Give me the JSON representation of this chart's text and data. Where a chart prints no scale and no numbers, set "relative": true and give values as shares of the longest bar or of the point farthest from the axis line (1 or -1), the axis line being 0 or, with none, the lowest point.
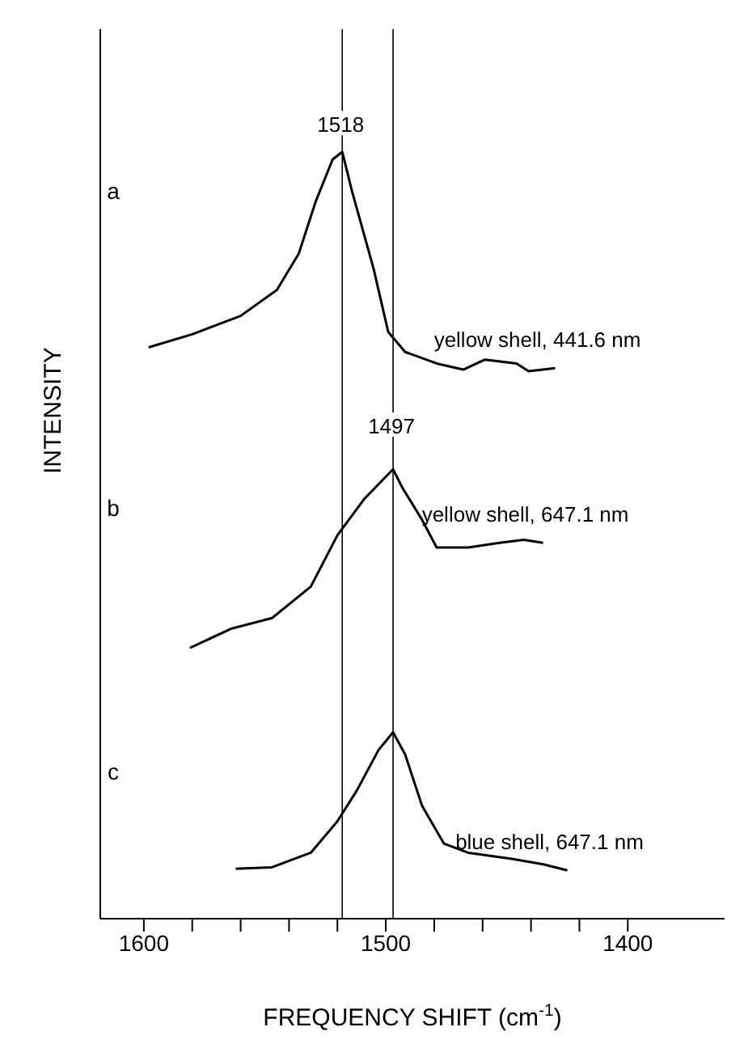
{
  "chart_data": {
    "type": "line",
    "relative": true,
    "xlabel": "FREQUENCY SHIFT (cm$^{-1}$)",
    "ylabel": "INTENSITY",
    "xlim": [
      1618,
      1360
    ],
    "xticks": [
      1600,
      {
        "value": 1580,
        "label": null
      },
      {
        "value": 1560,
        "label": null
      },
      {
        "value": 1540,
        "label": null
      },
      {
        "value": 1520,
        "label": null
      },
      1500,
      {
        "value": 1480,
        "label": null
      },
      {
        "value": 1460,
        "label": null
      },
      {
        "value": 1440,
        "label": null
      },
      {
        "value": 1420,
        "label": null
      },
      1400
    ],
    "series": [
      {
        "name": "yellow shell, 441.6 nm",
        "color": "#000000",
        "x": [
          1598,
          1580,
          1560,
          1545,
          1536,
          1529,
          1522,
          1518,
          1514,
          1505,
          1499,
          1492,
          1479,
          1468,
          1459,
          1446,
          1441,
          1430
        ],
        "values": [
          0.745,
          0.762,
          0.786,
          0.82,
          0.867,
          0.935,
          0.99,
          1.0,
          0.949,
          0.847,
          0.765,
          0.739,
          0.724,
          0.716,
          0.729,
          0.724,
          0.714,
          0.718
        ]
      },
      {
        "name": "yellow shell, 647.1 nm",
        "color": "#000000",
        "x": [
          1581,
          1564,
          1547,
          1531,
          1520,
          1509,
          1497,
          1493,
          1485,
          1479,
          1466,
          1453,
          1443,
          1435
        ],
        "values": [
          0.353,
          0.378,
          0.392,
          0.433,
          0.5,
          0.547,
          0.586,
          0.561,
          0.52,
          0.484,
          0.484,
          0.49,
          0.494,
          0.49
        ]
      },
      {
        "name": "blue shell, 647.1 nm",
        "color": "#000000",
        "x": [
          1562,
          1547,
          1531,
          1520,
          1512,
          1503,
          1497,
          1492,
          1485,
          1476,
          1466,
          1448,
          1435,
          1425
        ],
        "values": [
          0.065,
          0.067,
          0.086,
          0.127,
          0.167,
          0.22,
          0.243,
          0.214,
          0.147,
          0.098,
          0.086,
          0.078,
          0.071,
          0.063
        ]
      }
    ],
    "ref_lines": [
      {
        "axis": "x",
        "value": 1518
      },
      {
        "axis": "x",
        "value": 1497
      }
    ],
    "annotations": [
      {
        "text": "1518",
        "x": 1518,
        "y": 1.03
      },
      {
        "text": "1497",
        "x": 1497,
        "y": 0.637
      },
      "a",
      "b",
      "c"
    ]
  }
}
